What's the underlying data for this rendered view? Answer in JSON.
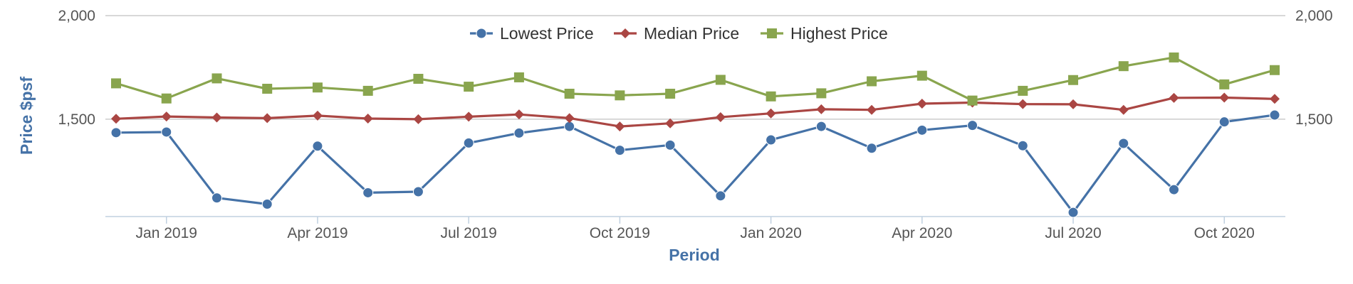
{
  "chart_data": {
    "type": "line",
    "title": "",
    "xlabel": "Period",
    "ylabel": "Price $psf",
    "ylim": [
      1030,
      2000
    ],
    "y_ticks": [
      1500,
      2000
    ],
    "y_tick_labels": [
      "1,500",
      "2,000"
    ],
    "dual_y_axis_labels": true,
    "x_tick_labels": [
      "Jan 2019",
      "Apr 2019",
      "Jul 2019",
      "Oct 2019",
      "Jan 2020",
      "Apr 2020",
      "Jul 2020",
      "Oct 2020"
    ],
    "x_tick_month_index": [
      1,
      4,
      7,
      10,
      13,
      16,
      19,
      22
    ],
    "grid": "horizontal",
    "legend_position": "top-center",
    "x": [
      "Dec 2018",
      "Jan 2019",
      "Feb 2019",
      "Mar 2019",
      "Apr 2019",
      "May 2019",
      "Jun 2019",
      "Jul 2019",
      "Aug 2019",
      "Sep 2019",
      "Oct 2019",
      "Nov 2019",
      "Dec 2019",
      "Jan 2020",
      "Feb 2020",
      "Mar 2020",
      "Apr 2020",
      "May 2020",
      "Jun 2020",
      "Jul 2020",
      "Aug 2020",
      "Sep 2020",
      "Oct 2020",
      "Nov 2020"
    ],
    "series": [
      {
        "name": "Lowest Price",
        "color": "#4572A7",
        "marker": "circle",
        "values": [
          1435,
          1438,
          1120,
          1090,
          1370,
          1145,
          1150,
          1385,
          1433,
          1465,
          1350,
          1375,
          1130,
          1400,
          1465,
          1360,
          1447,
          1470,
          1372,
          1050,
          1383,
          1160,
          1487,
          1520
        ]
      },
      {
        "name": "Median Price",
        "color": "#AA4643",
        "marker": "diamond",
        "values": [
          1502,
          1513,
          1508,
          1505,
          1517,
          1503,
          1500,
          1512,
          1523,
          1505,
          1465,
          1480,
          1510,
          1528,
          1548,
          1545,
          1575,
          1580,
          1573,
          1572,
          1545,
          1603,
          1604,
          1598
        ]
      },
      {
        "name": "Highest Price",
        "color": "#89A54E",
        "marker": "square",
        "values": [
          1673,
          1600,
          1697,
          1647,
          1653,
          1637,
          1695,
          1657,
          1702,
          1623,
          1615,
          1623,
          1690,
          1610,
          1625,
          1683,
          1710,
          1590,
          1637,
          1689,
          1756,
          1798,
          1668,
          1737
        ]
      }
    ]
  }
}
